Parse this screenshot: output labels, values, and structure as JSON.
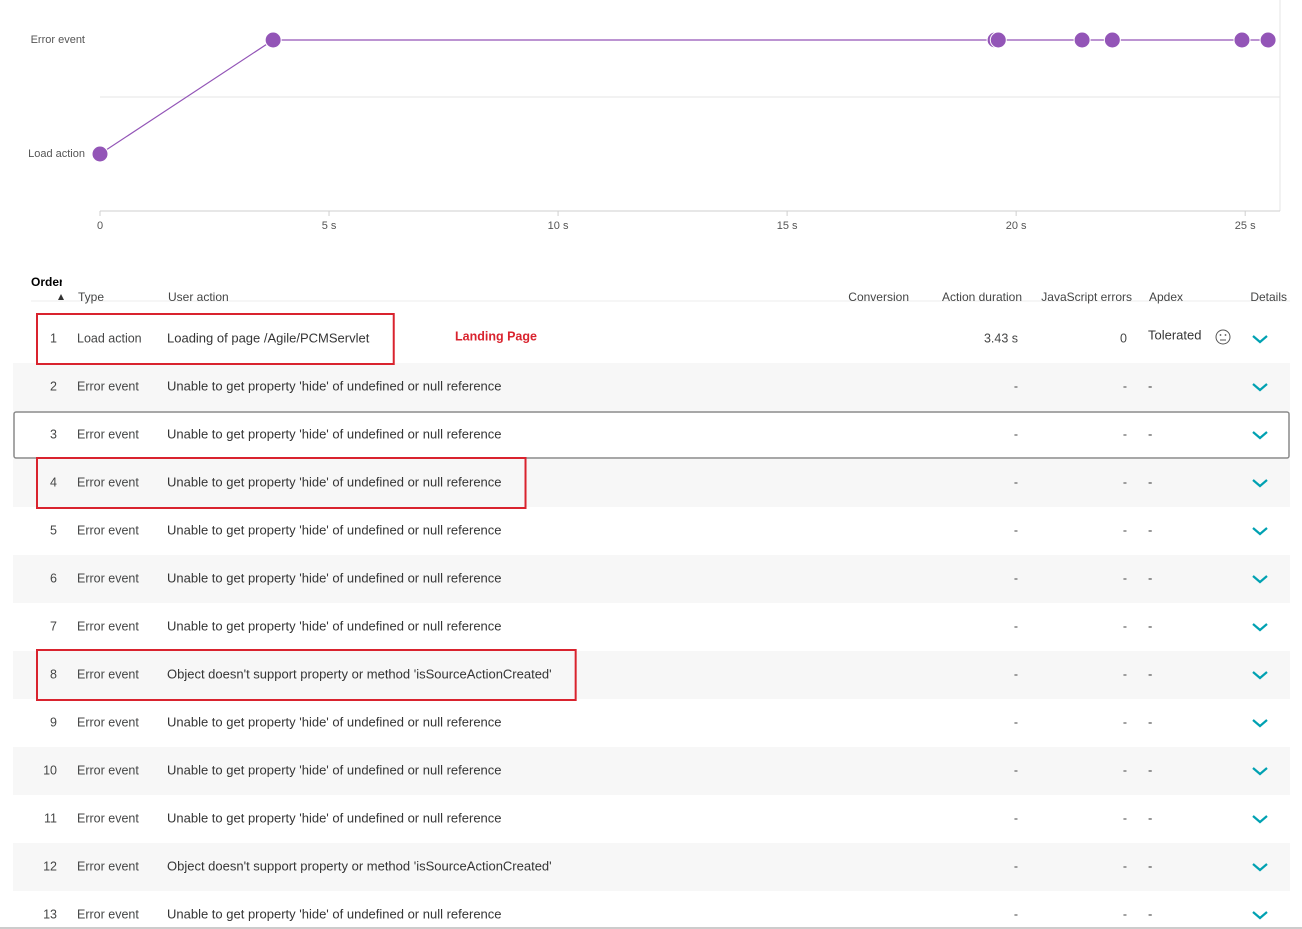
{
  "chart_data": {
    "type": "line",
    "color": "#9355b7",
    "x": [
      0,
      3.78,
      19.54,
      19.61,
      21.44,
      22.1,
      24.93,
      25.5
    ],
    "values": [
      0,
      1,
      1,
      1,
      1,
      1,
      1,
      1
    ],
    "xlim": [
      0,
      25.76
    ],
    "xticks": [
      0,
      {
        "value": 5,
        "label": "5 s"
      },
      {
        "value": 10,
        "label": "10 s"
      },
      {
        "value": 15,
        "label": "15 s"
      },
      {
        "value": 20,
        "label": "20 s"
      },
      {
        "value": 25,
        "label": "25 s"
      }
    ],
    "ylim": [
      -0.5,
      1.35
    ],
    "yticks": [
      {
        "value": 0,
        "label": "Load action"
      },
      {
        "value": 1,
        "label": "Error event"
      }
    ]
  },
  "table": {
    "columns": [
      "Order",
      "Type",
      "User action",
      "Conversion",
      "Action duration",
      "JavaScript errors",
      "Apdex",
      "Details"
    ],
    "annotation": "Landing Page",
    "rows": [
      {
        "order": 1,
        "type": "Load action",
        "action": "Loading of page /Agile/PCMServlet",
        "duration": "3.43 s",
        "js_errors": 0,
        "apdex": "Tolerated",
        "apdex_icon": true,
        "highlighted": true
      },
      {
        "order": 2,
        "type": "Error event",
        "action": "Unable to get property 'hide' of undefined or null reference",
        "duration": "-",
        "js_errors": "-",
        "apdex": "-"
      },
      {
        "order": 3,
        "type": "Error event",
        "action": "Unable to get property 'hide' of undefined or null reference",
        "duration": "-",
        "js_errors": "-",
        "apdex": "-",
        "selected": true
      },
      {
        "order": 4,
        "type": "Error event",
        "action": "Unable to get property 'hide' of undefined or null reference",
        "duration": "-",
        "js_errors": "-",
        "apdex": "-",
        "highlighted": true
      },
      {
        "order": 5,
        "type": "Error event",
        "action": "Unable to get property 'hide' of undefined or null reference",
        "duration": "-",
        "js_errors": "-",
        "apdex": "-"
      },
      {
        "order": 6,
        "type": "Error event",
        "action": "Unable to get property 'hide' of undefined or null reference",
        "duration": "-",
        "js_errors": "-",
        "apdex": "-"
      },
      {
        "order": 7,
        "type": "Error event",
        "action": "Unable to get property 'hide' of undefined or null reference",
        "duration": "-",
        "js_errors": "-",
        "apdex": "-"
      },
      {
        "order": 8,
        "type": "Error event",
        "action": "Object doesn't support property or method 'isSourceActionCreated'",
        "duration": "-",
        "js_errors": "-",
        "apdex": "-",
        "highlighted": true
      },
      {
        "order": 9,
        "type": "Error event",
        "action": "Unable to get property 'hide' of undefined or null reference",
        "duration": "-",
        "js_errors": "-",
        "apdex": "-"
      },
      {
        "order": 10,
        "type": "Error event",
        "action": "Unable to get property 'hide' of undefined or null reference",
        "duration": "-",
        "js_errors": "-",
        "apdex": "-"
      },
      {
        "order": 11,
        "type": "Error event",
        "action": "Unable to get property 'hide' of undefined or null reference",
        "duration": "-",
        "js_errors": "-",
        "apdex": "-"
      },
      {
        "order": 12,
        "type": "Error event",
        "action": "Object doesn't support property or method 'isSourceActionCreated'",
        "duration": "-",
        "js_errors": "-",
        "apdex": "-"
      },
      {
        "order": 13,
        "type": "Error event",
        "action": "Unable to get property 'hide' of undefined or null reference",
        "duration": "-",
        "js_errors": "-",
        "apdex": "-"
      }
    ]
  }
}
